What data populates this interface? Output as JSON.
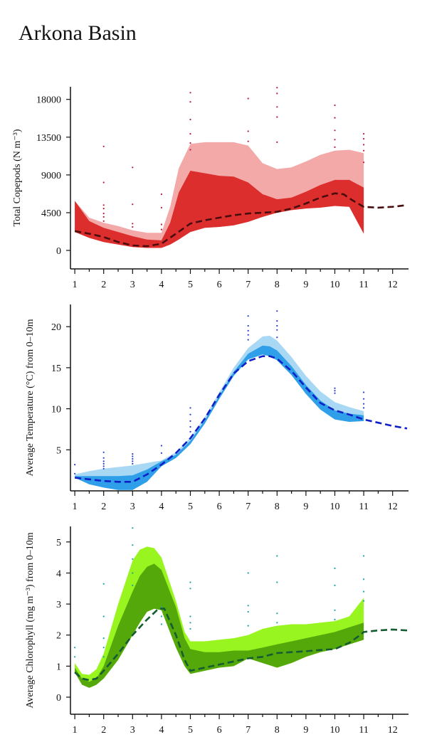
{
  "page": {
    "title": "Arkona Basin"
  },
  "chart_data": [
    {
      "type": "area",
      "ylabel": "Total Copepods (N m⁻³)",
      "xlim": [
        0.85,
        12.55
      ],
      "ylim": [
        -2200,
        19500
      ],
      "y_ticks": [
        0,
        4500,
        9000,
        13500,
        18000
      ],
      "x_ticks": [
        1,
        2,
        3,
        4,
        5,
        6,
        7,
        8,
        9,
        10,
        11,
        12
      ],
      "minor_x_ticks": [
        0.5,
        1.5,
        2.5,
        3.5,
        4.5,
        5.5,
        6.5,
        7.5,
        8.5,
        9.5,
        10.5,
        11.5
      ],
      "colors": {
        "outer_band": "#f4a9a9",
        "inner_band": "#dd2e2e",
        "mean_line": "#4a0d0d",
        "observations": "#b51c3a"
      },
      "outer_band": {
        "x": [
          1,
          1.5,
          2,
          2.5,
          3,
          3.5,
          4,
          4.3,
          4.6,
          5,
          5.5,
          6,
          6.5,
          7,
          7.5,
          8,
          8.5,
          9,
          9.5,
          10,
          10.5,
          11
        ],
        "upper": [
          5900,
          3900,
          3300,
          2900,
          2400,
          2100,
          2100,
          5200,
          9800,
          12700,
          12900,
          12900,
          12900,
          12500,
          10400,
          9700,
          9900,
          10600,
          11400,
          11900,
          12000,
          11600
        ],
        "lower": [
          2200,
          1500,
          1000,
          700,
          400,
          300,
          300,
          700,
          1300,
          2200,
          2700,
          2800,
          3000,
          3400,
          4000,
          4500,
          4800,
          5000,
          5100,
          5300,
          5200,
          2000
        ]
      },
      "inner_band": {
        "x": [
          1,
          1.5,
          2,
          2.5,
          3,
          3.5,
          4,
          4.3,
          4.6,
          5,
          5.5,
          6,
          6.5,
          7,
          7.5,
          8,
          8.5,
          9,
          9.5,
          10,
          10.5,
          11
        ],
        "upper": [
          5900,
          3500,
          2700,
          2200,
          1700,
          1300,
          1200,
          3300,
          6900,
          9500,
          9200,
          8900,
          8800,
          8100,
          6700,
          6100,
          6300,
          7000,
          7800,
          8400,
          8400,
          7500
        ],
        "lower": [
          2200,
          1500,
          1000,
          700,
          400,
          300,
          300,
          700,
          1300,
          2200,
          2700,
          2800,
          3000,
          3400,
          4000,
          4500,
          4800,
          5000,
          5100,
          5300,
          5200,
          2000
        ]
      },
      "mean_line": {
        "x": [
          1,
          1.5,
          2,
          2.5,
          3,
          3.5,
          4,
          4.5,
          5,
          5.5,
          6,
          6.5,
          7,
          7.5,
          8,
          8.5,
          9,
          9.5,
          10,
          10.3,
          10.6,
          11,
          11.5,
          12,
          12.5
        ],
        "y": [
          2300,
          2000,
          1600,
          1000,
          600,
          500,
          800,
          2000,
          3200,
          3600,
          3900,
          4200,
          4400,
          4500,
          4600,
          5000,
          5600,
          6300,
          6800,
          6700,
          6000,
          5200,
          5100,
          5200,
          5400
        ]
      },
      "observations": {
        "x": [
          2,
          2,
          2,
          2,
          2,
          2,
          2,
          3,
          3,
          3,
          3,
          4,
          4,
          4,
          4,
          5,
          5,
          5,
          5,
          5,
          5,
          7,
          7,
          7,
          8,
          8,
          8,
          8,
          8,
          10,
          10,
          10,
          10,
          10,
          11,
          11,
          11,
          11,
          11
        ],
        "y": [
          12400,
          8100,
          5400,
          5000,
          4400,
          4000,
          3500,
          9900,
          5500,
          3200,
          2800,
          6700,
          5100,
          3100,
          2500,
          18800,
          17700,
          15600,
          13900,
          12800,
          12000,
          18100,
          14200,
          13000,
          19400,
          18700,
          17100,
          15900,
          12900,
          17300,
          15800,
          14300,
          13200,
          12300,
          13900,
          13300,
          12600,
          11900,
          10500
        ]
      }
    },
    {
      "type": "area",
      "ylabel": "Average Temperature (°C) from 0–10m",
      "xlim": [
        0.85,
        12.55
      ],
      "ylim": [
        0,
        22.7
      ],
      "y_ticks": [
        5,
        10,
        15,
        20
      ],
      "x_ticks": [
        1,
        2,
        3,
        4,
        5,
        6,
        7,
        8,
        9,
        10,
        11,
        12
      ],
      "minor_x_ticks": [
        0.5,
        1.5,
        2.5,
        3.5,
        4.5,
        5.5,
        6.5,
        7.5,
        8.5,
        9.5,
        10.5,
        11.5
      ],
      "colors": {
        "outer_band": "#a9d8f5",
        "inner_band": "#2e9fe8",
        "mean_line": "#1020c8",
        "observations": "#2b3fcc"
      },
      "outer_band": {
        "x": [
          1,
          1.5,
          2,
          2.5,
          3,
          3.5,
          4,
          4.5,
          5,
          5.5,
          6,
          6.5,
          7,
          7.5,
          7.75,
          8,
          8.5,
          9,
          9.5,
          10,
          10.5,
          11
        ],
        "upper": [
          2.0,
          2.4,
          2.7,
          2.9,
          3.1,
          3.4,
          3.7,
          4.7,
          6.5,
          9.0,
          12.0,
          15.0,
          17.4,
          18.8,
          18.9,
          18.3,
          16.3,
          14.0,
          12.1,
          10.8,
          10.2,
          9.7
        ],
        "lower": [
          1.6,
          0.8,
          0.4,
          0.1,
          0.1,
          1.1,
          3.0,
          4.0,
          5.7,
          8.2,
          11.2,
          14.0,
          16.0,
          16.6,
          16.4,
          15.9,
          14.1,
          11.8,
          9.9,
          8.7,
          8.4,
          8.5
        ]
      },
      "inner_band": {
        "x": [
          1,
          1.5,
          2,
          2.5,
          3,
          3.5,
          4,
          4.5,
          5,
          5.5,
          6,
          6.5,
          7,
          7.5,
          7.75,
          8,
          8.5,
          9,
          9.5,
          10,
          10.5,
          11
        ],
        "upper": [
          1.8,
          1.8,
          1.8,
          1.8,
          1.9,
          2.6,
          3.6,
          4.4,
          6.1,
          8.6,
          11.6,
          14.5,
          16.7,
          17.7,
          17.6,
          17.1,
          15.2,
          12.9,
          11.0,
          9.8,
          9.4,
          9.2
        ],
        "lower": [
          1.6,
          0.8,
          0.4,
          0.1,
          0.1,
          1.1,
          3.0,
          4.0,
          5.7,
          8.2,
          11.2,
          14.0,
          16.0,
          16.6,
          16.4,
          15.9,
          14.1,
          11.8,
          9.9,
          8.7,
          8.4,
          8.5
        ]
      },
      "mean_line": {
        "x": [
          1,
          1.5,
          2,
          2.5,
          3,
          3.5,
          4,
          4.5,
          5,
          5.5,
          6,
          6.5,
          7,
          7.5,
          7.75,
          8,
          8.5,
          9,
          9.5,
          10,
          10.5,
          11,
          11.5,
          12,
          12.5
        ],
        "y": [
          1.6,
          1.4,
          1.2,
          1.1,
          1.1,
          2.0,
          3.2,
          4.6,
          6.4,
          8.8,
          11.7,
          14.3,
          15.8,
          16.4,
          16.4,
          16.1,
          14.6,
          12.6,
          10.7,
          9.8,
          9.3,
          8.7,
          8.3,
          7.9,
          7.6
        ]
      },
      "observations": {
        "x": [
          1,
          1,
          2,
          2,
          2,
          2,
          2,
          2,
          3,
          3,
          3,
          3,
          3,
          4,
          4,
          5,
          5,
          5,
          5,
          5,
          7,
          7,
          7,
          7,
          7,
          8,
          8,
          8,
          8,
          8,
          10,
          10,
          10,
          11,
          11,
          11,
          11
        ],
        "y": [
          3.2,
          2.1,
          4.7,
          4.0,
          3.6,
          3.3,
          3.0,
          2.7,
          4.5,
          4.2,
          3.9,
          3.6,
          3.3,
          5.5,
          4.6,
          10.1,
          9.3,
          8.5,
          7.8,
          7.2,
          21.3,
          20.1,
          19.5,
          19.0,
          18.4,
          21.9,
          20.7,
          20.1,
          19.6,
          18.7,
          12.5,
          12.2,
          11.9,
          12.0,
          11.2,
          10.6,
          10.1
        ]
      }
    },
    {
      "type": "area",
      "ylabel": "Average Chlorophyll (mg m⁻³) from 0–10m",
      "xlim": [
        0.85,
        12.55
      ],
      "ylim": [
        -0.55,
        5.5
      ],
      "y_ticks": [
        0,
        1,
        2,
        3,
        4,
        5
      ],
      "x_ticks": [
        1,
        2,
        3,
        4,
        5,
        6,
        7,
        8,
        9,
        10,
        11,
        12
      ],
      "minor_x_ticks": [
        0.5,
        1.5,
        2.5,
        3.5,
        4.5,
        5.5,
        6.5,
        7.5,
        8.5,
        9.5,
        10.5,
        11.5
      ],
      "colors": {
        "outer_band": "#99f51f",
        "inner_band": "#55a80a",
        "mean_line": "#155c32",
        "observations": "#1aa3a0"
      },
      "outer_band": {
        "x": [
          1,
          1.25,
          1.5,
          1.75,
          2,
          2.5,
          3,
          3.25,
          3.5,
          3.75,
          4,
          4.5,
          4.8,
          5,
          5.5,
          6,
          6.5,
          7,
          7.5,
          8,
          8.5,
          9,
          9.5,
          10,
          10.5,
          11
        ],
        "upper": [
          1.1,
          0.75,
          0.72,
          0.9,
          1.4,
          3.0,
          4.4,
          4.75,
          4.85,
          4.8,
          4.5,
          3.1,
          2.1,
          1.8,
          1.8,
          1.85,
          1.9,
          2.0,
          2.2,
          2.3,
          2.35,
          2.35,
          2.4,
          2.45,
          2.6,
          3.2
        ],
        "lower": [
          0.8,
          0.4,
          0.3,
          0.4,
          0.6,
          1.2,
          2.0,
          2.4,
          2.75,
          2.85,
          2.8,
          1.6,
          1.0,
          0.75,
          0.85,
          0.95,
          1.0,
          1.25,
          1.1,
          0.95,
          1.1,
          1.3,
          1.45,
          1.55,
          1.7,
          1.85
        ]
      },
      "inner_band": {
        "x": [
          1,
          1.25,
          1.5,
          1.75,
          2,
          2.5,
          3,
          3.25,
          3.5,
          3.75,
          4,
          4.5,
          4.8,
          5,
          5.5,
          6,
          6.5,
          7,
          7.5,
          8,
          8.5,
          9,
          9.5,
          10,
          10.5,
          11
        ],
        "upper": [
          0.95,
          0.6,
          0.5,
          0.6,
          1.0,
          2.3,
          3.4,
          3.9,
          4.2,
          4.3,
          4.1,
          2.9,
          1.9,
          1.55,
          1.45,
          1.45,
          1.5,
          1.5,
          1.6,
          1.7,
          1.8,
          1.9,
          2.0,
          2.1,
          2.25,
          2.4
        ],
        "lower": [
          0.8,
          0.4,
          0.3,
          0.4,
          0.6,
          1.2,
          2.0,
          2.4,
          2.75,
          2.85,
          2.8,
          1.6,
          1.0,
          0.75,
          0.85,
          0.95,
          1.0,
          1.25,
          1.1,
          0.95,
          1.1,
          1.3,
          1.45,
          1.55,
          1.7,
          1.85
        ]
      },
      "mean_line": {
        "x": [
          1,
          1.25,
          1.5,
          1.75,
          2,
          2.5,
          3,
          3.5,
          3.9,
          4.1,
          4.5,
          4.8,
          5,
          5.5,
          6,
          6.5,
          7,
          7.5,
          8,
          8.5,
          9,
          9.5,
          10,
          10.5,
          10.8,
          11,
          11.5,
          12,
          12.5
        ],
        "y": [
          0.8,
          0.6,
          0.55,
          0.6,
          0.85,
          1.4,
          2.0,
          2.5,
          2.85,
          2.85,
          2.0,
          1.2,
          0.85,
          0.95,
          1.05,
          1.15,
          1.25,
          1.3,
          1.42,
          1.45,
          1.48,
          1.52,
          1.55,
          1.75,
          1.95,
          2.1,
          2.15,
          2.18,
          2.15
        ]
      },
      "observations": {
        "x": [
          1,
          1,
          2,
          2,
          2,
          2,
          2,
          3,
          3,
          3,
          3,
          3,
          4,
          4,
          4,
          5,
          5,
          5,
          5,
          5,
          7,
          7,
          7,
          7,
          8,
          8,
          8,
          8,
          10,
          10,
          10,
          10,
          11,
          11,
          11,
          11
        ],
        "y": [
          1.6,
          1.3,
          3.65,
          2.6,
          1.9,
          1.6,
          1.3,
          5.45,
          4.9,
          4.45,
          4.0,
          3.6,
          2.9,
          2.6,
          2.35,
          3.7,
          3.5,
          2.6,
          2.4,
          2.2,
          4.0,
          2.95,
          2.75,
          2.3,
          4.55,
          3.7,
          2.7,
          2.4,
          4.15,
          3.6,
          2.8,
          2.5,
          4.55,
          3.8,
          3.4,
          3.1
        ]
      }
    }
  ]
}
